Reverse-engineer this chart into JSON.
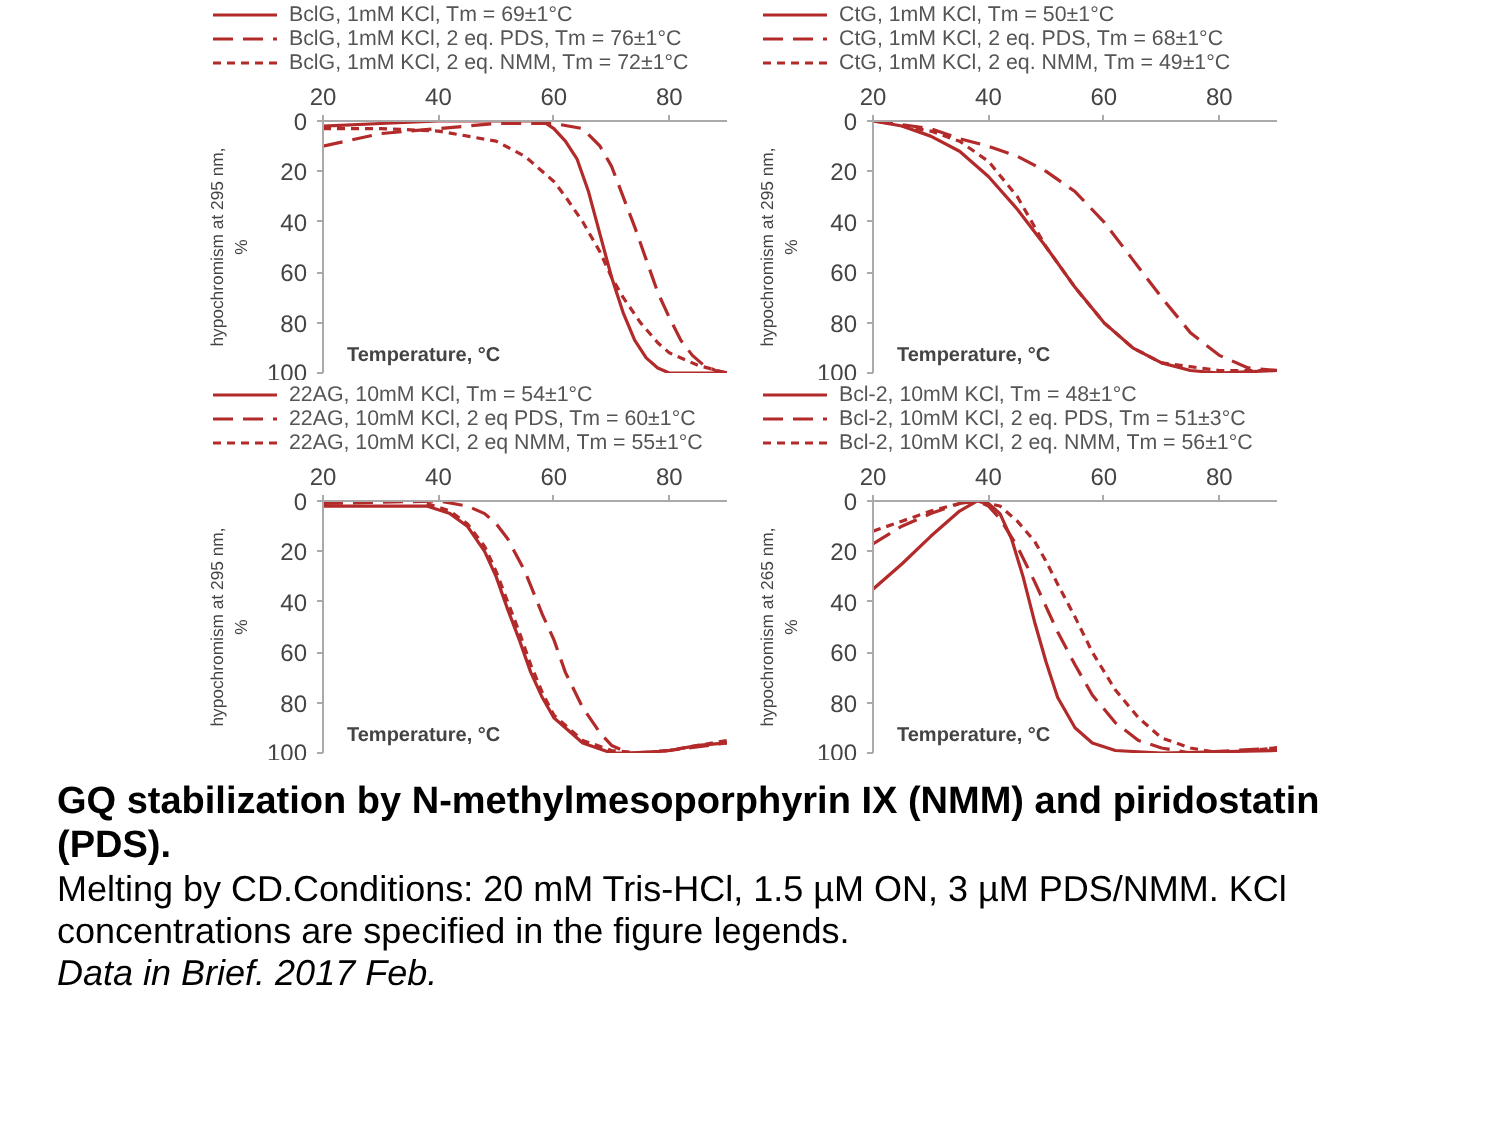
{
  "chart_data": [
    {
      "type": "line",
      "title": "GQ stabilization by N-methylmesoporphyrin IX (NMM) and piridostatin (PDS).",
      "annotations": [
        "Melting by CD.Conditions: 20 mM Tris-HCl, 1.5 µM ON, 3 µM PDS/NMM. KCl concentrations are specified in the figure legends.",
        "Data in Brief. 2017 Feb."
      ],
      "xlabel": "Temperature, °C",
      "ylabel": "hypochromism at 295 nm, %",
      "xlim": [
        20,
        90
      ],
      "xticks": [
        20,
        40,
        60,
        80
      ],
      "ylim": [
        100,
        0
      ],
      "yticks": [
        0,
        20,
        40,
        60,
        80,
        100
      ],
      "legend": "top",
      "series": [
        {
          "name": "BclG, 1mM KCl, Tm = 69±1°C",
          "color": "#b22a2a",
          "line_style": "solid",
          "x": [
            20,
            30,
            40,
            50,
            58,
            60,
            62,
            64,
            66,
            68,
            70,
            72,
            74,
            76,
            78,
            80,
            90
          ],
          "values": [
            2,
            1,
            0,
            0,
            0,
            3,
            8,
            15,
            28,
            45,
            62,
            76,
            87,
            94,
            98,
            100,
            100
          ]
        },
        {
          "name": "BclG, 1mM KCl, 2 eq. PDS, Tm = 76±1°C",
          "color": "#b22a2a",
          "line_style": "dashed",
          "x": [
            20,
            30,
            40,
            50,
            60,
            65,
            68,
            70,
            72,
            74,
            76,
            78,
            80,
            82,
            84,
            86,
            88,
            90
          ],
          "values": [
            10,
            5,
            3,
            1,
            1,
            3,
            10,
            18,
            30,
            42,
            55,
            68,
            78,
            87,
            93,
            97,
            99,
            100
          ]
        },
        {
          "name": "BclG, 1mM KCl, 2 eq. NMM, Tm = 72±1°C",
          "color": "#b22a2a",
          "line_style": "dotted",
          "x": [
            20,
            30,
            40,
            50,
            55,
            60,
            62,
            65,
            68,
            70,
            72,
            75,
            78,
            80,
            85,
            90
          ],
          "values": [
            3,
            3,
            4,
            8,
            14,
            24,
            30,
            40,
            52,
            62,
            70,
            80,
            88,
            92,
            97,
            100
          ]
        }
      ]
    },
    {
      "type": "line",
      "xlabel": "Temperature, °C",
      "ylabel": "hypochromism at 295 nm, %",
      "xlim": [
        20,
        90
      ],
      "xticks": [
        20,
        40,
        60,
        80
      ],
      "ylim": [
        100,
        0
      ],
      "yticks": [
        0,
        20,
        40,
        60,
        80,
        100
      ],
      "legend": "top",
      "series": [
        {
          "name": "CtG, 1mM KCl, Tm = 50±1°C",
          "color": "#b22a2a",
          "line_style": "solid",
          "x": [
            20,
            25,
            30,
            35,
            40,
            45,
            50,
            55,
            60,
            65,
            70,
            75,
            80,
            90
          ],
          "values": [
            0,
            2,
            6,
            12,
            22,
            35,
            50,
            66,
            80,
            90,
            96,
            99,
            100,
            99
          ]
        },
        {
          "name": "CtG, 1mM KCl, 2 eq. PDS, Tm = 68±1°C",
          "color": "#b22a2a",
          "line_style": "dashed",
          "x": [
            20,
            30,
            35,
            40,
            45,
            50,
            55,
            60,
            65,
            70,
            75,
            80,
            85,
            90
          ],
          "values": [
            0,
            3,
            7,
            10,
            14,
            20,
            28,
            40,
            55,
            70,
            84,
            93,
            98,
            99
          ]
        },
        {
          "name": "CtG, 1mM KCl, 2 eq. NMM, Tm = 49±1°C",
          "color": "#b22a2a",
          "line_style": "dotted",
          "x": [
            25,
            30,
            35,
            40,
            45,
            50,
            55,
            60,
            65,
            70,
            80,
            90
          ],
          "values": [
            2,
            4,
            8,
            16,
            30,
            50,
            66,
            80,
            90,
            96,
            99,
            99
          ]
        }
      ]
    },
    {
      "type": "line",
      "xlabel": "Temperature, °C",
      "ylabel": "hypochromism at 295 nm, %",
      "xlim": [
        20,
        90
      ],
      "xticks": [
        20,
        40,
        60,
        80
      ],
      "ylim": [
        100,
        0
      ],
      "yticks": [
        0,
        20,
        40,
        60,
        80,
        100
      ],
      "legend": "top",
      "series": [
        {
          "name": "22AG, 10mM KCl, Tm = 54±1°C",
          "color": "#b22a2a",
          "line_style": "solid",
          "x": [
            20,
            30,
            38,
            42,
            45,
            48,
            50,
            52,
            54,
            56,
            58,
            60,
            65,
            70,
            75,
            80,
            85,
            90
          ],
          "values": [
            2,
            2,
            2,
            5,
            10,
            20,
            30,
            43,
            55,
            68,
            78,
            86,
            96,
            100,
            100,
            99,
            97,
            96
          ]
        },
        {
          "name": "22AG, 10mM KCl, 2 eq PDS, Tm = 60±1°C",
          "color": "#b22a2a",
          "line_style": "dashed",
          "x": [
            20,
            40,
            45,
            48,
            50,
            52,
            55,
            58,
            60,
            62,
            65,
            68,
            70,
            73,
            80,
            90
          ],
          "values": [
            1,
            0,
            2,
            5,
            9,
            15,
            28,
            45,
            55,
            68,
            82,
            92,
            97,
            100,
            99,
            96
          ]
        },
        {
          "name": "22AG, 10mM KCl, 2 eq NMM, Tm = 55±1°C",
          "color": "#b22a2a",
          "line_style": "dotted",
          "x": [
            38,
            42,
            45,
            48,
            50,
            52,
            54,
            56,
            58,
            60,
            65,
            70,
            75,
            80,
            85,
            90
          ],
          "values": [
            1,
            4,
            9,
            18,
            28,
            40,
            52,
            65,
            76,
            85,
            95,
            99,
            100,
            99,
            97,
            95
          ]
        }
      ]
    },
    {
      "type": "line",
      "xlabel": "Temperature, °C",
      "ylabel": "hypochromism at 265 nm, %",
      "xlim": [
        20,
        90
      ],
      "xticks": [
        20,
        40,
        60,
        80
      ],
      "ylim": [
        100,
        0
      ],
      "yticks": [
        0,
        20,
        40,
        60,
        80,
        100
      ],
      "legend": "top",
      "series": [
        {
          "name": "Bcl-2, 10mM KCl, Tm = 48±1°C",
          "color": "#b22a2a",
          "line_style": "solid",
          "x": [
            20,
            25,
            30,
            35,
            38,
            40,
            42,
            44,
            46,
            48,
            50,
            52,
            55,
            58,
            62,
            70,
            90
          ],
          "values": [
            35,
            25,
            14,
            4,
            0,
            1,
            5,
            15,
            30,
            48,
            64,
            78,
            90,
            96,
            99,
            100,
            99
          ]
        },
        {
          "name": "Bcl-2, 10mM KCl, 2 eq. PDS, Tm = 51±3°C",
          "color": "#b22a2a",
          "line_style": "dashed",
          "x": [
            20,
            25,
            30,
            35,
            38,
            40,
            42,
            45,
            48,
            50,
            52,
            55,
            58,
            62,
            66,
            70,
            75,
            90
          ],
          "values": [
            17,
            10,
            5,
            1,
            0,
            2,
            7,
            18,
            32,
            42,
            52,
            65,
            77,
            88,
            95,
            98,
            100,
            98
          ]
        },
        {
          "name": "Bcl-2, 10mM KCl, 2 eq. NMM, Tm = 56±1°C",
          "color": "#b22a2a",
          "line_style": "dotted",
          "x": [
            20,
            25,
            30,
            35,
            38,
            42,
            45,
            48,
            50,
            52,
            55,
            58,
            62,
            66,
            70,
            75,
            80,
            90
          ],
          "values": [
            12,
            8,
            4,
            1,
            0,
            2,
            8,
            16,
            24,
            33,
            46,
            60,
            75,
            86,
            94,
            98,
            100,
            98
          ]
        }
      ]
    }
  ]
}
